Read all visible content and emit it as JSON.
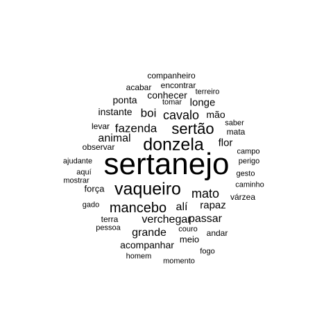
{
  "text_color": "#000000",
  "background_color": "#ffffff",
  "words": [
    "sertanejo",
    "donzela",
    "vaqueiro",
    "sertão",
    "mancebo",
    "fazenda",
    "cavalo",
    "mato",
    "animal",
    "grande",
    "verchegar",
    "passar",
    "alí",
    "rapaz",
    "flor",
    "boi",
    "longe",
    "instante",
    "ponta",
    "conhecer",
    "acompanhar",
    "mão",
    "encontrar",
    "companheiro",
    "acabar",
    "terreiro",
    "tomar",
    "saber",
    "mata",
    "levar",
    "observar",
    "campo",
    "perigo",
    "ajudante",
    "aquí",
    "gesto",
    "mostrar",
    "caminho",
    "força",
    "várzea",
    "gado",
    "terra",
    "pessoa",
    "couro",
    "andar",
    "meio",
    "fogo",
    "homem",
    "momento"
  ]
}
